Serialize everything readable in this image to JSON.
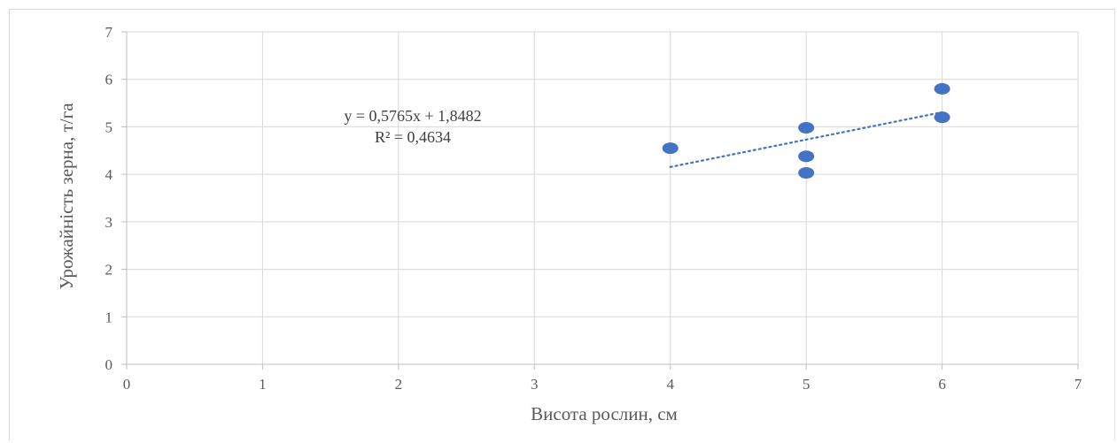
{
  "chart_data": {
    "type": "scatter",
    "xlabel": "Висота рослин, см",
    "ylabel": "Урожайність зерна, т/га",
    "xlim": [
      0,
      7
    ],
    "ylim": [
      0,
      7
    ],
    "xticks": [
      "0",
      "1",
      "2",
      "3",
      "4",
      "5",
      "6",
      "7"
    ],
    "yticks": [
      "0",
      "1",
      "2",
      "3",
      "4",
      "5",
      "6",
      "7"
    ],
    "grid": true,
    "series": [
      {
        "points": [
          {
            "x": 4,
            "y": 4.55
          },
          {
            "x": 5,
            "y": 4.98
          },
          {
            "x": 5,
            "y": 4.38
          },
          {
            "x": 5,
            "y": 4.03
          },
          {
            "x": 6,
            "y": 5.8
          },
          {
            "x": 6,
            "y": 5.2
          }
        ],
        "color": "#4472c4"
      }
    ],
    "trendline": {
      "slope": 0.5765,
      "intercept": 1.8482,
      "x_range": [
        4,
        6
      ],
      "style": "dotted",
      "color": "#4472c4",
      "equation_label": "y = 0,5765x + 1,8482",
      "r2_label": "R² = 0,4634"
    }
  }
}
